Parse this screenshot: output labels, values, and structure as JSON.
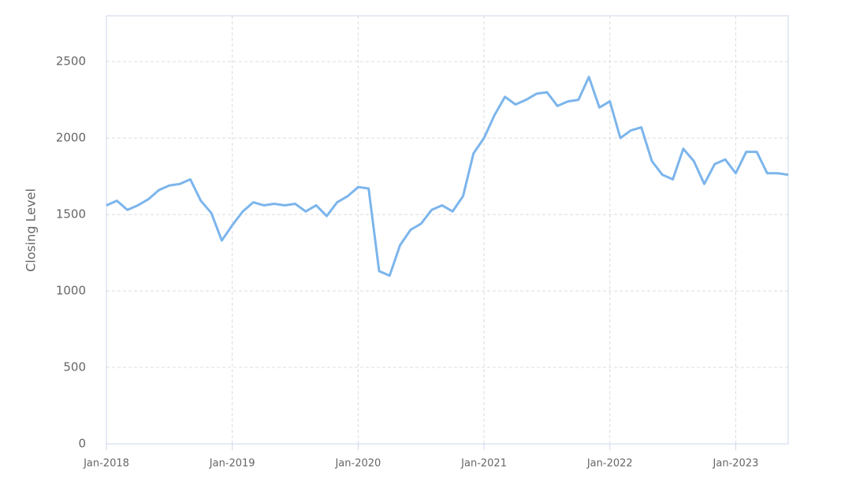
{
  "chart_data": {
    "type": "line",
    "y_label": "Closing Level",
    "x": [
      "2018-01",
      "2018-02",
      "2018-03",
      "2018-04",
      "2018-05",
      "2018-06",
      "2018-07",
      "2018-08",
      "2018-09",
      "2018-10",
      "2018-11",
      "2018-12",
      "2019-01",
      "2019-02",
      "2019-03",
      "2019-04",
      "2019-05",
      "2019-06",
      "2019-07",
      "2019-08",
      "2019-09",
      "2019-10",
      "2019-11",
      "2019-12",
      "2020-01",
      "2020-02",
      "2020-03",
      "2020-04",
      "2020-05",
      "2020-06",
      "2020-07",
      "2020-08",
      "2020-09",
      "2020-10",
      "2020-11",
      "2020-12",
      "2021-01",
      "2021-02",
      "2021-03",
      "2021-04",
      "2021-05",
      "2021-06",
      "2021-07",
      "2021-08",
      "2021-09",
      "2021-10",
      "2021-11",
      "2021-12",
      "2022-01",
      "2022-02",
      "2022-03",
      "2022-04",
      "2022-05",
      "2022-06",
      "2022-07",
      "2022-08",
      "2022-09",
      "2022-10",
      "2022-11",
      "2022-12",
      "2023-01",
      "2023-02",
      "2023-03",
      "2023-04",
      "2023-05",
      "2023-06"
    ],
    "series": [
      {
        "name": "Closing Level",
        "color": "#7cb5ec",
        "values": [
          1560,
          1590,
          1530,
          1560,
          1600,
          1660,
          1690,
          1700,
          1730,
          1590,
          1510,
          1330,
          1430,
          1520,
          1580,
          1560,
          1570,
          1560,
          1570,
          1520,
          1560,
          1490,
          1580,
          1620,
          1680,
          1670,
          1130,
          1100,
          1300,
          1400,
          1440,
          1530,
          1560,
          1520,
          1620,
          1900,
          2000,
          2150,
          2270,
          2220,
          2250,
          2290,
          2300,
          2210,
          2240,
          2250,
          2400,
          2200,
          2240,
          2000,
          2050,
          2070,
          1850,
          1760,
          1730,
          1930,
          1850,
          1700,
          1830,
          1860,
          1770,
          1910,
          1910,
          1770,
          1770,
          1760
        ]
      }
    ],
    "xlim": [
      "2018-01",
      "2023-06"
    ],
    "xticks": [
      {
        "value": "2018-01",
        "label": "Jan-2018"
      },
      {
        "value": "2019-01",
        "label": "Jan-2019"
      },
      {
        "value": "2020-01",
        "label": "Jan-2020"
      },
      {
        "value": "2021-01",
        "label": "Jan-2021"
      },
      {
        "value": "2022-01",
        "label": "Jan-2022"
      },
      {
        "value": "2023-01",
        "label": "Jan-2023"
      }
    ],
    "ylim": [
      0,
      2800
    ],
    "yticks": [
      0,
      500,
      1000,
      1500,
      2000,
      2500
    ],
    "grid": true
  }
}
